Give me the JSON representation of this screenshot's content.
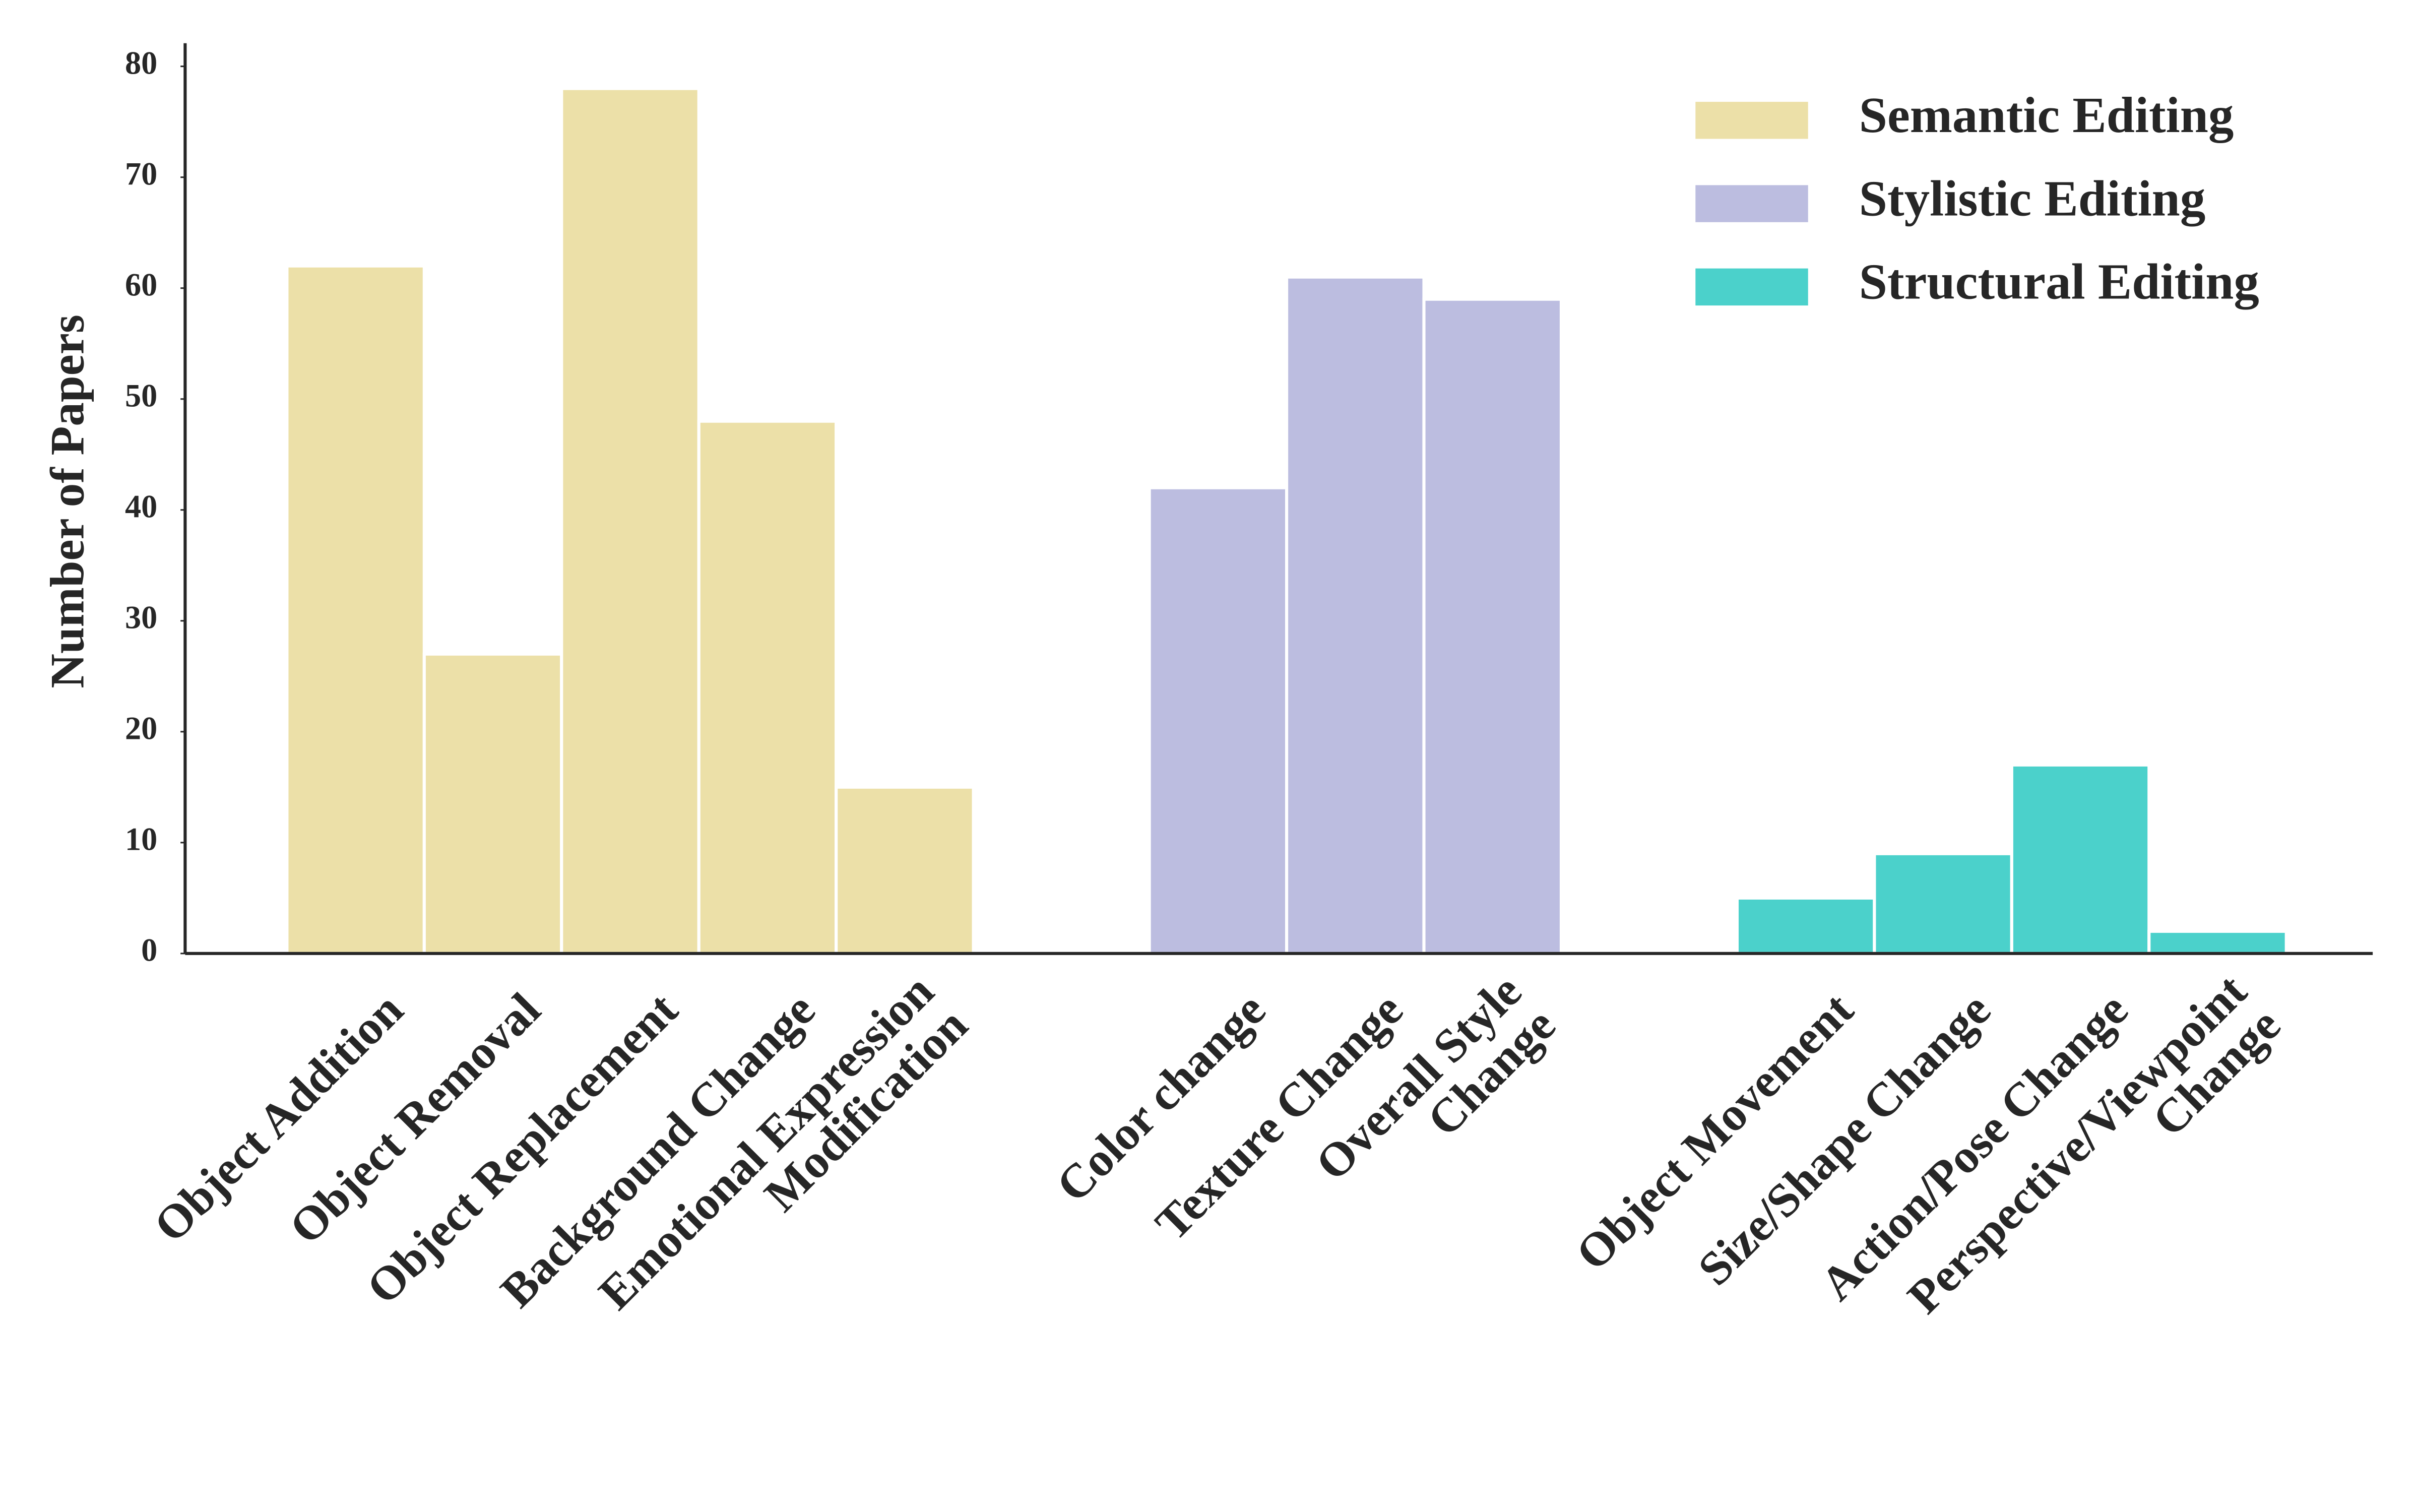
{
  "chart_data": {
    "type": "bar",
    "ylabel": "Number of Papers",
    "ylim": [
      0,
      80
    ],
    "yticks": [
      0,
      10,
      20,
      30,
      40,
      50,
      60,
      70,
      80
    ],
    "grid": false,
    "legend_loc": "upper right",
    "series": [
      {
        "name": "Semantic Editing",
        "color": "#ece0a8",
        "categories": [
          [
            "Object Addition"
          ],
          [
            "Object Removal"
          ],
          [
            "Object Replacement"
          ],
          [
            "Background Change"
          ],
          [
            "Emotional Expression",
            "Modification"
          ]
        ],
        "values": [
          62,
          27,
          78,
          48,
          15
        ]
      },
      {
        "name": "Stylistic Editing",
        "color": "#bcbde0",
        "categories": [
          [
            "Color change"
          ],
          [
            "Texture Change"
          ],
          [
            "Overall Style",
            "Change"
          ]
        ],
        "values": [
          42,
          61,
          59
        ]
      },
      {
        "name": "Structural Editing",
        "color": "#4bd1cb",
        "categories": [
          [
            "Object Movement"
          ],
          [
            "Size/Shape Change"
          ],
          [
            "Action/Pose Change"
          ],
          [
            "Perspective/Viewpoint",
            "Change"
          ]
        ],
        "values": [
          5,
          9,
          17,
          2
        ]
      }
    ]
  }
}
